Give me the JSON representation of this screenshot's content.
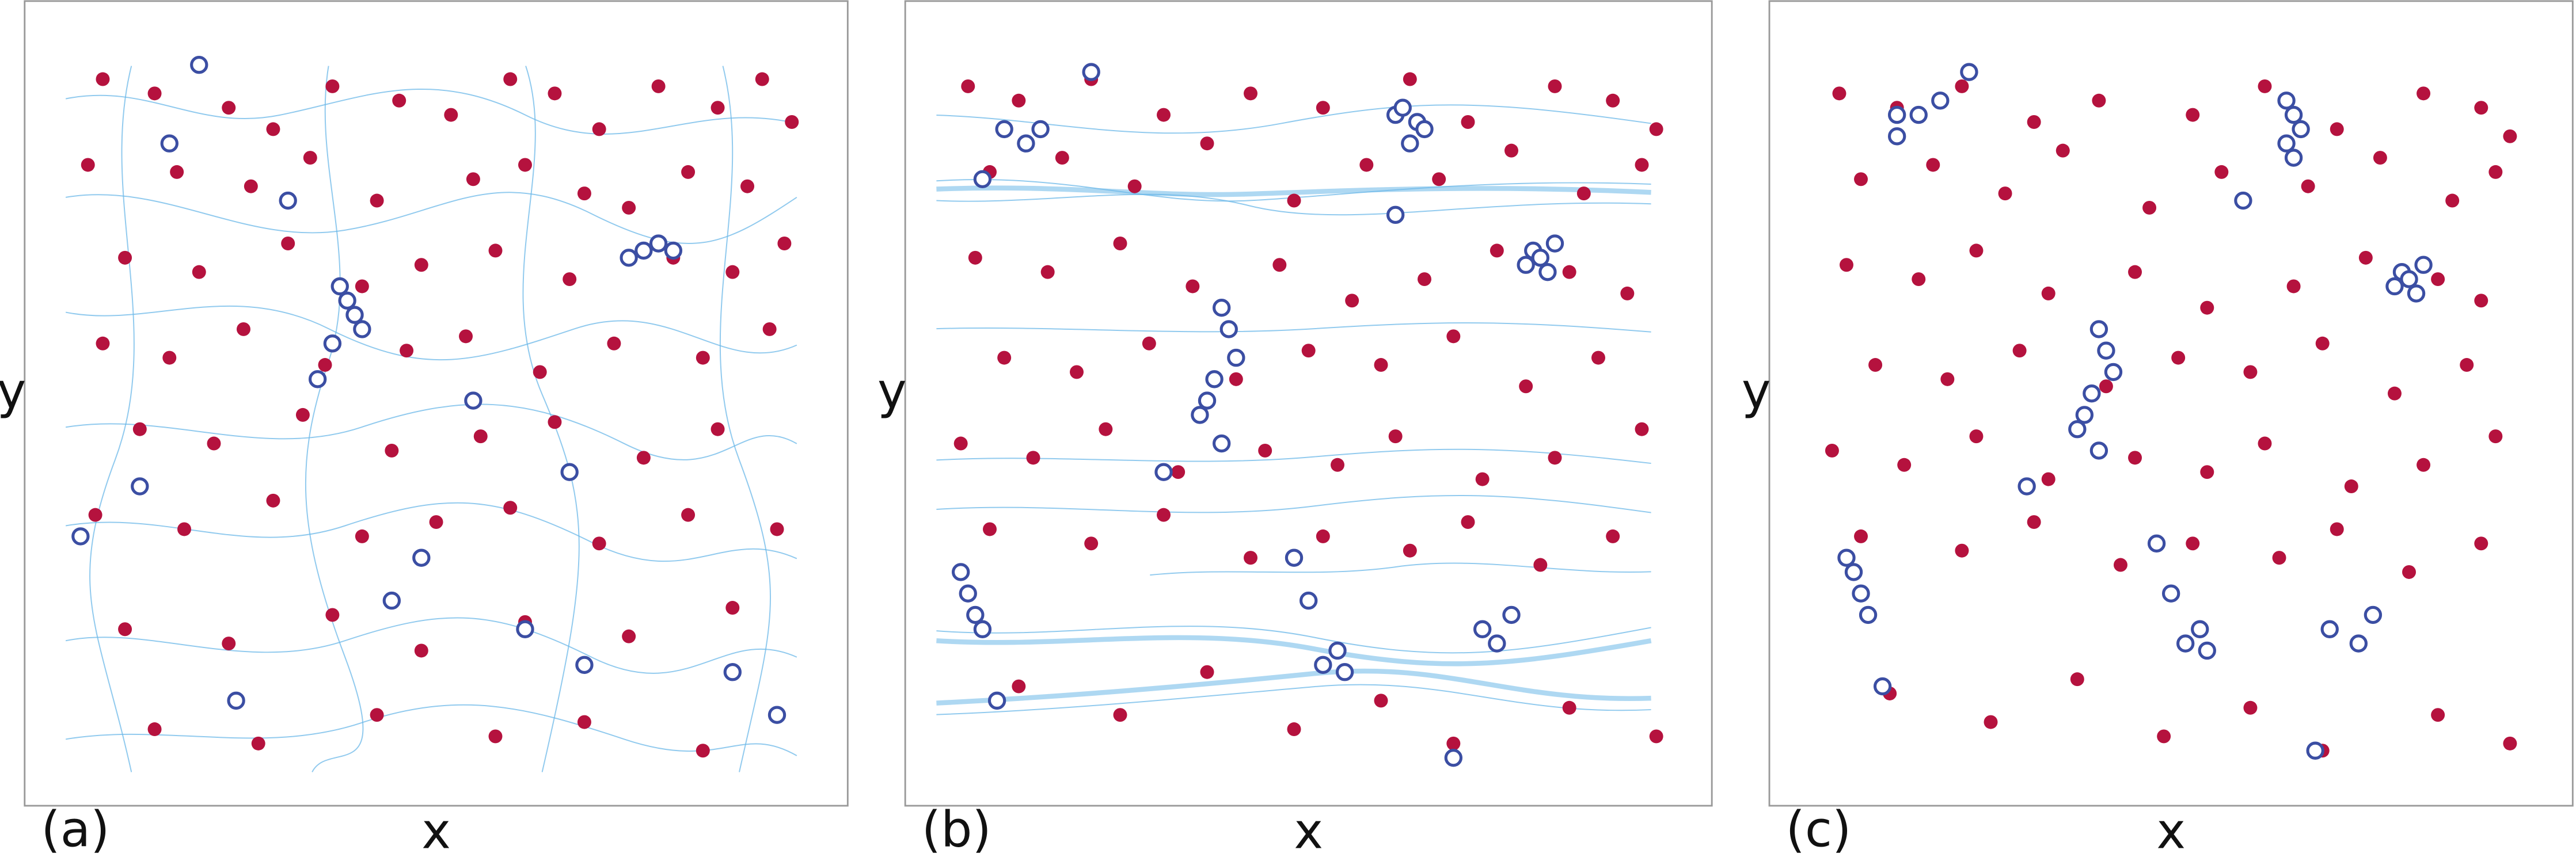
{
  "chart_data": [
    {
      "type": "scatter",
      "panel_label": "(a)",
      "xlabel": "x",
      "ylabel": "y",
      "xlim": [
        0,
        100
      ],
      "ylim": [
        0,
        100
      ],
      "series": [
        {
          "color": "#b5123e",
          "marker": "filled",
          "x": [
            5,
            12,
            22,
            28,
            36,
            45,
            52,
            60,
            66,
            72,
            80,
            88,
            94,
            98,
            3,
            15,
            25,
            33,
            42,
            55,
            62,
            70,
            76,
            84,
            92,
            8,
            18,
            30,
            40,
            48,
            58,
            68,
            82,
            90,
            97,
            5,
            14,
            24,
            35,
            46,
            54,
            64,
            74,
            86,
            95,
            10,
            20,
            32,
            44,
            56,
            66,
            78,
            88,
            4,
            16,
            28,
            40,
            50,
            60,
            72,
            84,
            96,
            8,
            22,
            36,
            48,
            62,
            76,
            90,
            12,
            26,
            42,
            58,
            70,
            86
          ],
          "y": [
            97,
            95,
            93,
            90,
            96,
            94,
            92,
            97,
            95,
            90,
            96,
            93,
            97,
            91,
            85,
            84,
            82,
            86,
            80,
            83,
            85,
            81,
            79,
            84,
            82,
            72,
            70,
            74,
            68,
            71,
            73,
            69,
            72,
            70,
            74,
            60,
            58,
            62,
            57,
            59,
            61,
            56,
            60,
            58,
            62,
            48,
            46,
            50,
            45,
            47,
            49,
            44,
            48,
            36,
            34,
            38,
            33,
            35,
            37,
            32,
            36,
            34,
            20,
            18,
            22,
            17,
            21,
            19,
            23,
            6,
            4,
            8,
            5,
            7,
            3
          ]
        },
        {
          "color": "#3b4ea3",
          "marker": "open",
          "x": [
            18,
            14,
            30,
            37,
            38,
            39,
            40,
            36,
            34,
            78,
            80,
            82,
            76,
            55,
            10,
            2,
            48,
            62,
            70,
            90,
            96,
            44,
            68,
            23
          ],
          "y": [
            99,
            88,
            80,
            68,
            66,
            64,
            62,
            60,
            55,
            73,
            74,
            73,
            72,
            52,
            40,
            33,
            30,
            20,
            15,
            14,
            8,
            24,
            42,
            10
          ]
        }
      ]
    },
    {
      "type": "scatter",
      "panel_label": "(b)",
      "xlabel": "x",
      "ylabel": "y",
      "xlim": [
        0,
        100
      ],
      "ylim": [
        0,
        100
      ],
      "series": [
        {
          "color": "#b5123e",
          "marker": "filled",
          "x": [
            3,
            10,
            20,
            30,
            42,
            52,
            64,
            72,
            84,
            92,
            98,
            6,
            16,
            26,
            36,
            48,
            58,
            68,
            78,
            88,
            96,
            4,
            14,
            24,
            34,
            46,
            56,
            66,
            76,
            86,
            94,
            8,
            18,
            28,
            40,
            50,
            60,
            70,
            80,
            90,
            2,
            12,
            22,
            32,
            44,
            54,
            62,
            74,
            84,
            96,
            6,
            20,
            30,
            42,
            52,
            64,
            72,
            82,
            92,
            10,
            24,
            36,
            48,
            60,
            70,
            86,
            98
          ],
          "y": [
            96,
            94,
            97,
            92,
            95,
            93,
            97,
            91,
            96,
            94,
            90,
            84,
            86,
            82,
            88,
            80,
            85,
            83,
            87,
            81,
            85,
            72,
            70,
            74,
            68,
            71,
            66,
            69,
            73,
            70,
            67,
            58,
            56,
            60,
            55,
            59,
            57,
            61,
            54,
            58,
            46,
            44,
            48,
            42,
            45,
            43,
            47,
            41,
            44,
            48,
            34,
            32,
            36,
            30,
            33,
            31,
            35,
            29,
            33,
            12,
            8,
            14,
            6,
            10,
            4,
            9,
            5
          ]
        },
        {
          "color": "#3b4ea3",
          "marker": "open",
          "x": [
            20,
            13,
            11,
            5,
            62,
            63,
            65,
            66,
            64,
            81,
            82,
            84,
            80,
            83,
            38,
            39,
            40,
            37,
            36,
            35,
            38,
            54,
            52,
            55,
            3,
            4,
            2,
            5,
            7,
            74,
            76,
            78,
            50,
            48,
            30,
            70,
            8,
            62
          ],
          "y": [
            98,
            90,
            88,
            83,
            92,
            93,
            91,
            90,
            88,
            73,
            72,
            74,
            71,
            70,
            65,
            62,
            58,
            55,
            52,
            50,
            46,
            17,
            15,
            14,
            25,
            22,
            28,
            20,
            10,
            20,
            18,
            22,
            24,
            30,
            42,
            2,
            90,
            78
          ]
        }
      ]
    },
    {
      "type": "scatter",
      "panel_label": "(c)",
      "xlabel": "x",
      "ylabel": "y",
      "xlim": [
        0,
        100
      ],
      "ylim": [
        0,
        100
      ],
      "series": [
        {
          "color": "#b5123e",
          "marker": "filled",
          "x": [
            4,
            12,
            21,
            31,
            40,
            53,
            63,
            73,
            85,
            93,
            97,
            7,
            17,
            27,
            35,
            47,
            57,
            69,
            79,
            89,
            95,
            5,
            15,
            23,
            33,
            45,
            55,
            67,
            77,
            87,
            93,
            9,
            19,
            29,
            41,
            51,
            61,
            71,
            81,
            91,
            3,
            13,
            23,
            33,
            45,
            55,
            63,
            75,
            85,
            95,
            7,
            21,
            31,
            43,
            53,
            65,
            73,
            83,
            93,
            11,
            25,
            37,
            49,
            61,
            71,
            87,
            97
          ],
          "y": [
            95,
            93,
            96,
            91,
            94,
            92,
            96,
            90,
            95,
            93,
            89,
            83,
            85,
            81,
            87,
            79,
            84,
            82,
            86,
            80,
            84,
            71,
            69,
            73,
            67,
            70,
            65,
            68,
            72,
            69,
            66,
            57,
            55,
            59,
            54,
            58,
            56,
            60,
            53,
            57,
            45,
            43,
            47,
            41,
            44,
            42,
            46,
            40,
            43,
            47,
            33,
            31,
            35,
            29,
            32,
            30,
            34,
            28,
            32,
            11,
            7,
            13,
            5,
            9,
            3,
            8,
            4
          ]
        },
        {
          "color": "#3b4ea3",
          "marker": "open",
          "x": [
            22,
            18,
            15,
            12,
            66,
            67,
            68,
            66,
            67,
            82,
            83,
            85,
            81,
            84,
            40,
            41,
            42,
            39,
            38,
            37,
            40,
            54,
            52,
            55,
            6,
            7,
            5,
            8,
            10,
            72,
            76,
            78,
            50,
            48,
            30,
            70,
            12,
            60
          ],
          "y": [
            98,
            94,
            92,
            89,
            94,
            92,
            90,
            88,
            86,
            70,
            69,
            71,
            68,
            67,
            62,
            59,
            56,
            53,
            50,
            48,
            45,
            20,
            18,
            17,
            28,
            25,
            30,
            22,
            12,
            20,
            18,
            22,
            25,
            32,
            40,
            3,
            92,
            80
          ]
        }
      ]
    }
  ]
}
